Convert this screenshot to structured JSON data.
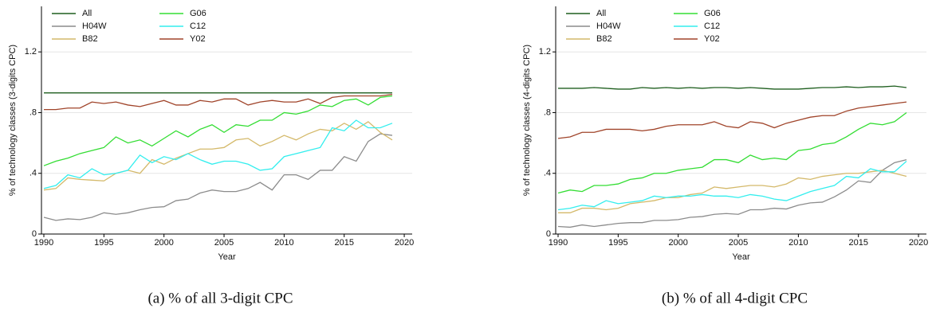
{
  "chart_data": [
    {
      "type": "line",
      "caption": "(a) % of all 3-digit CPC",
      "xlabel": "Year",
      "ylabel": "% of technology classes (3-digits CPC)",
      "x": [
        1990,
        1991,
        1992,
        1993,
        1994,
        1995,
        1996,
        1997,
        1998,
        1999,
        2000,
        2001,
        2002,
        2003,
        2004,
        2005,
        2006,
        2007,
        2008,
        2009,
        2010,
        2011,
        2012,
        2013,
        2014,
        2015,
        2016,
        2017,
        2018,
        2019
      ],
      "xlim": [
        1989.8,
        2020.66
      ],
      "xticks": [
        1990,
        1995,
        2000,
        2005,
        2010,
        2015,
        2020
      ],
      "ylim": [
        0,
        1.5
      ],
      "yticks": [
        0,
        {
          "value": 0.4,
          "label": ".4"
        },
        {
          "value": 0.8,
          "label": ".8"
        },
        1.2
      ],
      "grid": true,
      "legend": "top-left",
      "series": [
        {
          "name": "All",
          "color": "#1e5e1e",
          "values": [
            0.93,
            0.93,
            0.93,
            0.93,
            0.93,
            0.93,
            0.93,
            0.93,
            0.93,
            0.93,
            0.93,
            0.93,
            0.93,
            0.93,
            0.93,
            0.93,
            0.93,
            0.93,
            0.93,
            0.93,
            0.93,
            0.93,
            0.93,
            0.93,
            0.93,
            0.93,
            0.93,
            0.93,
            0.93,
            0.93
          ]
        },
        {
          "name": "H04W",
          "color": "#8c8c8c",
          "values": [
            0.11,
            0.09,
            0.1,
            0.095,
            0.11,
            0.14,
            0.13,
            0.14,
            0.16,
            0.175,
            0.18,
            0.22,
            0.23,
            0.27,
            0.29,
            0.28,
            0.28,
            0.3,
            0.34,
            0.29,
            0.39,
            0.39,
            0.36,
            0.42,
            0.42,
            0.51,
            0.48,
            0.61,
            0.66,
            0.65
          ]
        },
        {
          "name": "B82",
          "color": "#d4b96a",
          "values": [
            0.29,
            0.3,
            0.37,
            0.36,
            0.355,
            0.35,
            0.4,
            0.42,
            0.4,
            0.49,
            0.46,
            0.5,
            0.53,
            0.56,
            0.56,
            0.57,
            0.62,
            0.63,
            0.58,
            0.61,
            0.65,
            0.62,
            0.66,
            0.69,
            0.68,
            0.73,
            0.69,
            0.74,
            0.67,
            0.62
          ]
        },
        {
          "name": "G06",
          "color": "#33dd33",
          "values": [
            0.45,
            0.48,
            0.5,
            0.53,
            0.55,
            0.57,
            0.64,
            0.6,
            0.62,
            0.58,
            0.63,
            0.68,
            0.64,
            0.69,
            0.72,
            0.67,
            0.72,
            0.71,
            0.75,
            0.75,
            0.8,
            0.79,
            0.81,
            0.85,
            0.84,
            0.88,
            0.89,
            0.85,
            0.9,
            0.91
          ]
        },
        {
          "name": "C12",
          "color": "#33eeee",
          "values": [
            0.3,
            0.32,
            0.39,
            0.37,
            0.43,
            0.39,
            0.4,
            0.42,
            0.52,
            0.47,
            0.51,
            0.49,
            0.53,
            0.49,
            0.46,
            0.48,
            0.48,
            0.46,
            0.42,
            0.43,
            0.51,
            0.53,
            0.55,
            0.57,
            0.7,
            0.68,
            0.75,
            0.7,
            0.7,
            0.73
          ]
        },
        {
          "name": "Y02",
          "color": "#a0442a",
          "values": [
            0.82,
            0.82,
            0.83,
            0.83,
            0.87,
            0.86,
            0.87,
            0.85,
            0.84,
            0.86,
            0.88,
            0.85,
            0.85,
            0.88,
            0.87,
            0.89,
            0.89,
            0.85,
            0.87,
            0.88,
            0.87,
            0.87,
            0.89,
            0.86,
            0.9,
            0.91,
            0.91,
            0.91,
            0.91,
            0.92
          ]
        }
      ]
    },
    {
      "type": "line",
      "caption": "(b) % of all 4-digit CPC",
      "xlabel": "Year",
      "ylabel": "% of technology classes (4-digits CPC)",
      "x": [
        1990,
        1991,
        1992,
        1993,
        1994,
        1995,
        1996,
        1997,
        1998,
        1999,
        2000,
        2001,
        2002,
        2003,
        2004,
        2005,
        2006,
        2007,
        2008,
        2009,
        2010,
        2011,
        2012,
        2013,
        2014,
        2015,
        2016,
        2017,
        2018,
        2019
      ],
      "xlim": [
        1989.8,
        2020.66
      ],
      "xticks": [
        1990,
        1995,
        2000,
        2005,
        2010,
        2015,
        2020
      ],
      "ylim": [
        0,
        1.5
      ],
      "yticks": [
        0,
        {
          "value": 0.4,
          "label": ".4"
        },
        {
          "value": 0.8,
          "label": ".8"
        },
        1.2
      ],
      "grid": true,
      "legend": "top-left",
      "series": [
        {
          "name": "All",
          "color": "#1e5e1e",
          "values": [
            0.96,
            0.96,
            0.96,
            0.965,
            0.96,
            0.955,
            0.955,
            0.965,
            0.96,
            0.965,
            0.96,
            0.965,
            0.96,
            0.965,
            0.965,
            0.96,
            0.965,
            0.96,
            0.955,
            0.955,
            0.955,
            0.96,
            0.965,
            0.965,
            0.97,
            0.965,
            0.97,
            0.97,
            0.975,
            0.965
          ]
        },
        {
          "name": "H04W",
          "color": "#8c8c8c",
          "values": [
            0.05,
            0.045,
            0.06,
            0.05,
            0.06,
            0.07,
            0.075,
            0.075,
            0.09,
            0.09,
            0.095,
            0.11,
            0.115,
            0.13,
            0.135,
            0.13,
            0.16,
            0.16,
            0.17,
            0.165,
            0.19,
            0.205,
            0.21,
            0.245,
            0.29,
            0.35,
            0.34,
            0.42,
            0.47,
            0.49
          ]
        },
        {
          "name": "B82",
          "color": "#d4b96a",
          "values": [
            0.14,
            0.14,
            0.17,
            0.17,
            0.16,
            0.17,
            0.2,
            0.21,
            0.22,
            0.24,
            0.24,
            0.26,
            0.27,
            0.31,
            0.3,
            0.31,
            0.32,
            0.32,
            0.31,
            0.33,
            0.37,
            0.36,
            0.38,
            0.39,
            0.4,
            0.4,
            0.41,
            0.42,
            0.4,
            0.38
          ]
        },
        {
          "name": "G06",
          "color": "#33dd33",
          "values": [
            0.27,
            0.29,
            0.28,
            0.32,
            0.32,
            0.33,
            0.36,
            0.37,
            0.4,
            0.4,
            0.42,
            0.43,
            0.44,
            0.49,
            0.49,
            0.47,
            0.52,
            0.49,
            0.5,
            0.49,
            0.55,
            0.56,
            0.59,
            0.6,
            0.64,
            0.69,
            0.73,
            0.72,
            0.74,
            0.8
          ]
        },
        {
          "name": "C12",
          "color": "#33eeee",
          "values": [
            0.16,
            0.17,
            0.19,
            0.18,
            0.22,
            0.2,
            0.21,
            0.22,
            0.25,
            0.24,
            0.25,
            0.25,
            0.26,
            0.25,
            0.25,
            0.24,
            0.26,
            0.25,
            0.23,
            0.22,
            0.25,
            0.28,
            0.3,
            0.32,
            0.38,
            0.37,
            0.43,
            0.41,
            0.41,
            0.48
          ]
        },
        {
          "name": "Y02",
          "color": "#a0442a",
          "values": [
            0.63,
            0.64,
            0.67,
            0.67,
            0.69,
            0.69,
            0.69,
            0.68,
            0.69,
            0.71,
            0.72,
            0.72,
            0.72,
            0.74,
            0.71,
            0.7,
            0.74,
            0.73,
            0.7,
            0.73,
            0.75,
            0.77,
            0.78,
            0.78,
            0.81,
            0.83,
            0.84,
            0.85,
            0.86,
            0.87
          ]
        }
      ]
    }
  ]
}
